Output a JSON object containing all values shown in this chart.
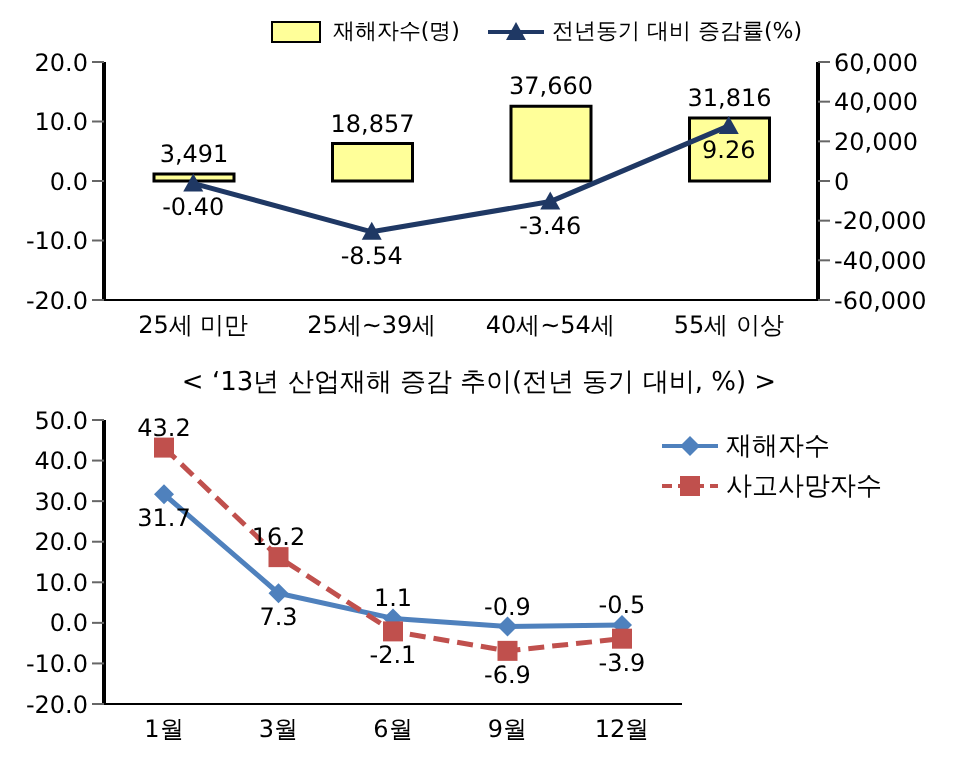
{
  "chart_data": [
    {
      "type": "bar",
      "categories": [
        "25세 미만",
        "25세~39세",
        "40세~54세",
        "55세 이상"
      ],
      "series": [
        {
          "name": "재해자수(명)",
          "axis": "y2",
          "color": "#ffff99",
          "values": [
            3491,
            18857,
            37660,
            31816
          ],
          "value_labels": [
            "3,491",
            "18,857",
            "37,660",
            "31,816"
          ]
        },
        {
          "name": "전년동기 대비 증감률(%)",
          "type": "line",
          "axis": "y",
          "color": "#1f3864",
          "marker": "triangle",
          "line_style": "solid",
          "values": [
            -0.4,
            -8.54,
            -3.46,
            9.26
          ],
          "value_labels": [
            "-0.40",
            "-8.54",
            "-3.46",
            "9.26"
          ]
        }
      ],
      "ylim": [
        -20,
        20
      ],
      "yticks": [
        {
          "value": -20,
          "label": "-20.0"
        },
        {
          "value": -10,
          "label": "-10.0"
        },
        {
          "value": 0,
          "label": "0.0"
        },
        {
          "value": 10,
          "label": "10.0"
        },
        {
          "value": 20,
          "label": "20.0"
        }
      ],
      "y2lim": [
        -60000,
        60000
      ],
      "y2ticks": [
        {
          "value": -60000,
          "label": "-60,000"
        },
        {
          "value": -40000,
          "label": "-40,000"
        },
        {
          "value": -20000,
          "label": "-20,000"
        },
        0,
        {
          "value": 20000,
          "label": "20,000"
        },
        {
          "value": 40000,
          "label": "40,000"
        },
        {
          "value": 60000,
          "label": "60,000"
        }
      ],
      "legend": "top right",
      "grid": false
    },
    {
      "type": "line",
      "title": "< ‘13년 산업재해 증감 추이(전년 동기 대비, %) >",
      "categories": [
        "1월",
        "3월",
        "6월",
        "9월",
        "12월"
      ],
      "series": [
        {
          "name": "재해자수",
          "color": "#4f81bd",
          "marker": "diamond",
          "line_style": "solid",
          "values": [
            31.7,
            7.3,
            1.1,
            -0.9,
            -0.5
          ],
          "value_labels": [
            "31.7",
            "7.3",
            "1.1",
            "-0.9",
            "-0.5"
          ]
        },
        {
          "name": "사고사망자수",
          "color": "#c0504d",
          "marker": "square",
          "line_style": "dashed",
          "values": [
            43.2,
            16.2,
            -2.1,
            -6.9,
            -3.9
          ],
          "value_labels": [
            "43.2",
            "16.2",
            "-2.1",
            "-6.9",
            "-3.9"
          ]
        }
      ],
      "ylim": [
        -20,
        50
      ],
      "yticks": [
        {
          "value": -20,
          "label": "-20.0"
        },
        {
          "value": -10,
          "label": "-10.0"
        },
        {
          "value": 0,
          "label": "0.0"
        },
        {
          "value": 10,
          "label": "10.0"
        },
        {
          "value": 20,
          "label": "20.0"
        },
        {
          "value": 30,
          "label": "30.0"
        },
        {
          "value": 40,
          "label": "40.0"
        },
        {
          "value": 50,
          "label": "50.0"
        }
      ],
      "legend": "top right",
      "grid": false
    }
  ]
}
